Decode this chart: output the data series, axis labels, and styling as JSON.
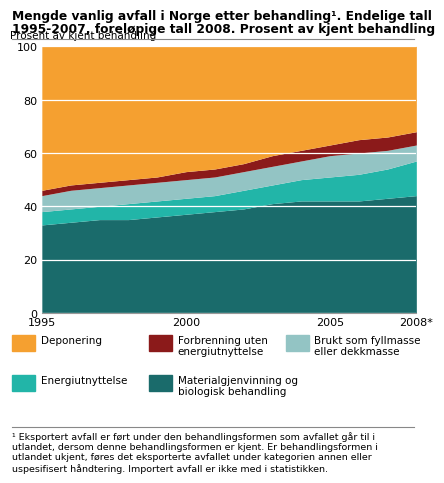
{
  "years": [
    1995,
    1996,
    1997,
    1998,
    1999,
    2000,
    2001,
    2002,
    2003,
    2004,
    2005,
    2006,
    2007,
    2008
  ],
  "series": {
    "Materialgjenvinning og\nbiologisk behandling": [
      33,
      34,
      35,
      35,
      36,
      37,
      38,
      39,
      41,
      42,
      42,
      42,
      43,
      44
    ],
    "Energiutnyttelse": [
      5,
      5,
      5,
      6,
      6,
      6,
      6,
      7,
      7,
      8,
      9,
      10,
      11,
      13
    ],
    "Brukt som fyllmasse\neller dekkmasse": [
      6,
      7,
      7,
      7,
      7,
      7,
      7,
      7,
      7,
      7,
      8,
      8,
      7,
      6
    ],
    "Forbrenning uten\nenergiutnyttelse": [
      2,
      2,
      2,
      2,
      2,
      3,
      3,
      3,
      4,
      4,
      4,
      5,
      5,
      5
    ],
    "Deponering": [
      54,
      52,
      51,
      50,
      49,
      47,
      46,
      44,
      41,
      39,
      37,
      35,
      34,
      32
    ]
  },
  "colors": {
    "Materialgjenvinning og\nbiologisk behandling": "#1a6b6b",
    "Energiutnyttelse": "#22b5a8",
    "Brukt som fyllmasse\neller dekkmasse": "#93C4C4",
    "Forbrenning uten\nenergiutnyttelse": "#8B1a1a",
    "Deponering": "#F5A030"
  },
  "title_line1": "Mengde vanlig avfall i Norge etter behandling¹. Endelige tall",
  "title_line2": "1995-2007, foreløpige tall 2008. Prosent av kjent behandling",
  "ylabel": "Prosent av kjent behandling",
  "ylim": [
    0,
    100
  ],
  "yticks": [
    0,
    20,
    40,
    60,
    80,
    100
  ],
  "xtick_labels": [
    "1995",
    "2000",
    "2005",
    "2008*"
  ],
  "xtick_positions": [
    1995,
    2000,
    2005,
    2008
  ],
  "footnote": "¹ Eksportert avfall er ført under den behandlingsformen som avfallet går til i\nutlandet, dersom denne behandlingsformen er kjent. Er behandlingsformen i\nutlandet ukjent, føres det eksporterte avfallet under kategorien annen eller\nuspesifisert håndtering. Importert avfall er ikke med i statistikken.",
  "draw_order": [
    "Materialgjenvinning og\nbiologisk behandling",
    "Energiutnyttelse",
    "Brukt som fyllmasse\neller dekkmasse",
    "Forbrenning uten\nenergiutnyttelse",
    "Deponering"
  ],
  "legend_items": [
    [
      "Deponering",
      "Deponering"
    ],
    [
      "Forbrenning uten\nenergiutnyttelse",
      "Forbrenning uten\nenergiutnyttelse"
    ],
    [
      "Brukt som fyllmasse\neller dekkmasse",
      "Brukt som fyllmasse\neller dekkmasse"
    ],
    [
      "Energiutnyttelse",
      "Energiutnyttelse"
    ],
    [
      "Materialgjenvinning og\nbiologisk behandling",
      "Materialgjenvinning og\nbiologisk behandling"
    ]
  ]
}
